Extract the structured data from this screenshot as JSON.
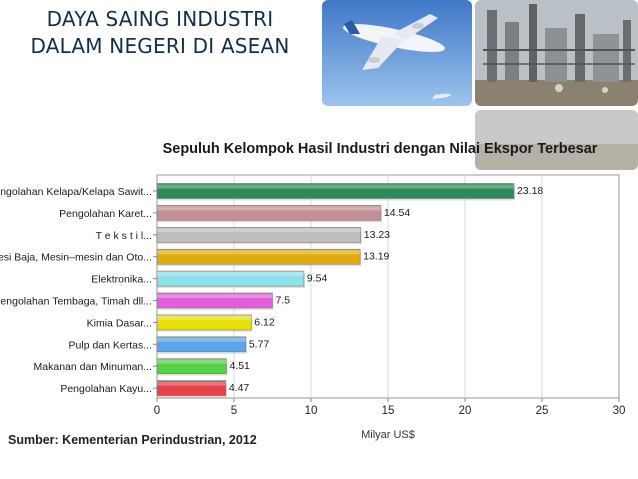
{
  "slide": {
    "title_line1": "DAYA SAING INDUSTRI",
    "title_line2": "DALAM NEGERI DI ASEAN",
    "source": "Sumber: Kementerian Perindustrian, 2012"
  },
  "images": {
    "photo1": "airplane-in-sky",
    "photo2": "industrial-refinery"
  },
  "chart_data": {
    "type": "bar",
    "orientation": "horizontal",
    "title": "Sepuluh Kelompok Hasil Industri dengan Nilai Ekspor Terbesar",
    "xlabel": "Milyar US$",
    "ylabel": "",
    "xlim": [
      0,
      30
    ],
    "xticks": [
      0,
      5,
      10,
      15,
      20,
      25,
      30
    ],
    "grid": true,
    "categories": [
      "Pengolahan Kelapa/Kelapa Sawit...",
      "Pengolahan Karet...",
      "T e k s t i l...",
      "Besi Baja, Mesin–mesin dan Oto...",
      "Elektronika...",
      "Pengolahan Tembaga, Timah dll...",
      "Kimia Dasar...",
      "Pulp dan Kertas...",
      "Makanan dan Minuman...",
      "Pengolahan Kayu..."
    ],
    "values": [
      23.18,
      14.54,
      13.23,
      13.19,
      9.54,
      7.5,
      6.12,
      5.77,
      4.51,
      4.47
    ],
    "value_labels": [
      "23.18",
      "14.54",
      "13.23",
      "13.19",
      "9.54",
      "7.5",
      "6.12",
      "5.77",
      "4.51",
      "4.47"
    ],
    "colors": [
      "#2e8b57",
      "#c48f94",
      "#bdbdbd",
      "#e0ad10",
      "#8ee0ea",
      "#e25fdc",
      "#e7e00c",
      "#5aa6e8",
      "#54d144",
      "#e5424a"
    ]
  }
}
